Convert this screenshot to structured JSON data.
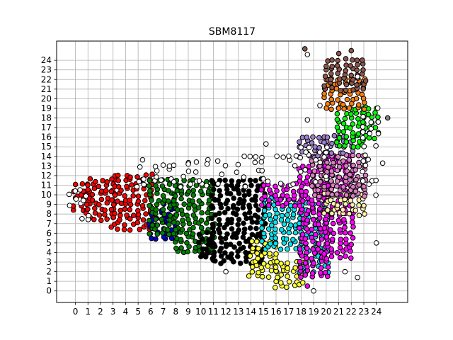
{
  "chart_data": {
    "type": "scatter",
    "title": "SBM8117",
    "xlabel": "",
    "ylabel": "",
    "xlim": [
      -1.5,
      26.5
    ],
    "ylim": [
      -1.2,
      26.0
    ],
    "xticks": [
      0,
      1,
      2,
      3,
      4,
      5,
      6,
      7,
      8,
      9,
      10,
      11,
      12,
      13,
      14,
      15,
      16,
      17,
      18,
      19,
      20,
      21,
      22,
      23,
      24
    ],
    "yticks": [
      0,
      1,
      2,
      3,
      4,
      5,
      6,
      7,
      8,
      9,
      10,
      11,
      12,
      13,
      14,
      15,
      16,
      17,
      18,
      19,
      20,
      21,
      22,
      23,
      24
    ],
    "grid": true,
    "legend": "none",
    "clusters": [
      {
        "color": "#ff0000",
        "regions": [
          [
            0,
            8.5,
            1,
            11
          ],
          [
            1,
            7.5,
            3,
            11.5
          ],
          [
            3,
            6.5,
            6,
            12
          ]
        ]
      },
      {
        "color": "#0000cc",
        "regions": [
          [
            6,
            5.5,
            7,
            8
          ],
          [
            7,
            5.5,
            8,
            9
          ]
        ]
      },
      {
        "color": "#008000",
        "regions": [
          [
            6,
            6,
            8,
            11.5
          ],
          [
            8,
            4,
            11,
            11.5
          ]
        ]
      },
      {
        "color": "#000000",
        "regions": [
          [
            11,
            3,
            15,
            11.5
          ],
          [
            10,
            3.5,
            11,
            6
          ]
        ]
      },
      {
        "color": "#ffff33",
        "regions": [
          [
            14,
            1.5,
            16,
            5
          ],
          [
            16,
            0.5,
            18,
            3
          ]
        ]
      },
      {
        "color": "#00e5ee",
        "regions": [
          [
            15,
            4.5,
            18,
            9.5
          ],
          [
            18,
            2,
            20,
            9
          ]
        ]
      },
      {
        "color": "#ff00ff",
        "regions": [
          [
            15,
            9,
            18,
            11
          ],
          [
            18,
            1.5,
            20,
            13
          ],
          [
            20,
            3.5,
            22,
            14
          ]
        ]
      },
      {
        "color": "#fff2a8",
        "regions": [
          [
            20,
            8,
            23,
            10
          ]
        ]
      },
      {
        "color": "#d97fc0",
        "regions": [
          [
            19,
            10,
            23,
            14
          ],
          [
            22,
            10,
            23,
            11.5
          ]
        ]
      },
      {
        "color": "#9f7fcf",
        "regions": [
          [
            18,
            14,
            20,
            16
          ],
          [
            20,
            14.5,
            22,
            16
          ]
        ]
      },
      {
        "color": "#00ff00",
        "regions": [
          [
            21,
            15,
            23,
            19
          ],
          [
            23,
            16,
            24,
            19
          ]
        ]
      },
      {
        "color": "#ff7f0e",
        "regions": [
          [
            20,
            19,
            23,
            22
          ]
        ]
      },
      {
        "color": "#8c564b",
        "regions": [
          [
            20,
            21,
            23,
            24
          ]
        ]
      },
      {
        "color": "#ffffff",
        "regions": [
          [
            -0.5,
            7.5,
            1,
            11
          ],
          [
            5,
            11,
            12,
            13.5
          ],
          [
            13,
            11,
            15,
            14
          ],
          [
            15,
            11,
            18,
            14
          ],
          [
            18,
            11.5,
            20,
            15.5
          ],
          [
            23,
            10,
            24,
            19
          ]
        ]
      }
    ],
    "outliers": [
      {
        "x": 18.5,
        "y": 24.6,
        "color": "#ffffff"
      },
      {
        "x": 18.3,
        "y": 25.2,
        "color": "#8c564b"
      },
      {
        "x": 21.0,
        "y": 24.7,
        "color": "#8c564b"
      },
      {
        "x": 22.0,
        "y": 25.0,
        "color": "#8c564b"
      },
      {
        "x": 22.5,
        "y": 22.3,
        "color": "#ffffff"
      },
      {
        "x": 19.5,
        "y": 19.3,
        "color": "#ffffff"
      },
      {
        "x": 24.9,
        "y": 18.0,
        "color": "#808080"
      },
      {
        "x": 24.5,
        "y": 13.3,
        "color": "#ffffff"
      },
      {
        "x": 15.2,
        "y": 15.3,
        "color": "#ffffff"
      },
      {
        "x": 18.5,
        "y": 17.8,
        "color": "#ffffff"
      },
      {
        "x": 19.0,
        "y": 0.0,
        "color": "#ffffff"
      },
      {
        "x": 18.5,
        "y": 0.5,
        "color": "#ff00ff"
      },
      {
        "x": 22.5,
        "y": 1.4,
        "color": "#ffffff"
      },
      {
        "x": 21.5,
        "y": 2.0,
        "color": "#ffffff"
      },
      {
        "x": 24.0,
        "y": 5.0,
        "color": "#ffffff"
      },
      {
        "x": 12.0,
        "y": 2.0,
        "color": "#ffffff"
      },
      {
        "x": 11.0,
        "y": 3.2,
        "color": "#000000"
      },
      {
        "x": 7.5,
        "y": 13.0,
        "color": "#ffffff"
      },
      {
        "x": 9.0,
        "y": 13.2,
        "color": "#ffffff"
      },
      {
        "x": 10.5,
        "y": 13.2,
        "color": "#ffffff"
      },
      {
        "x": 6.5,
        "y": 12.5,
        "color": "#ffffff"
      }
    ]
  }
}
